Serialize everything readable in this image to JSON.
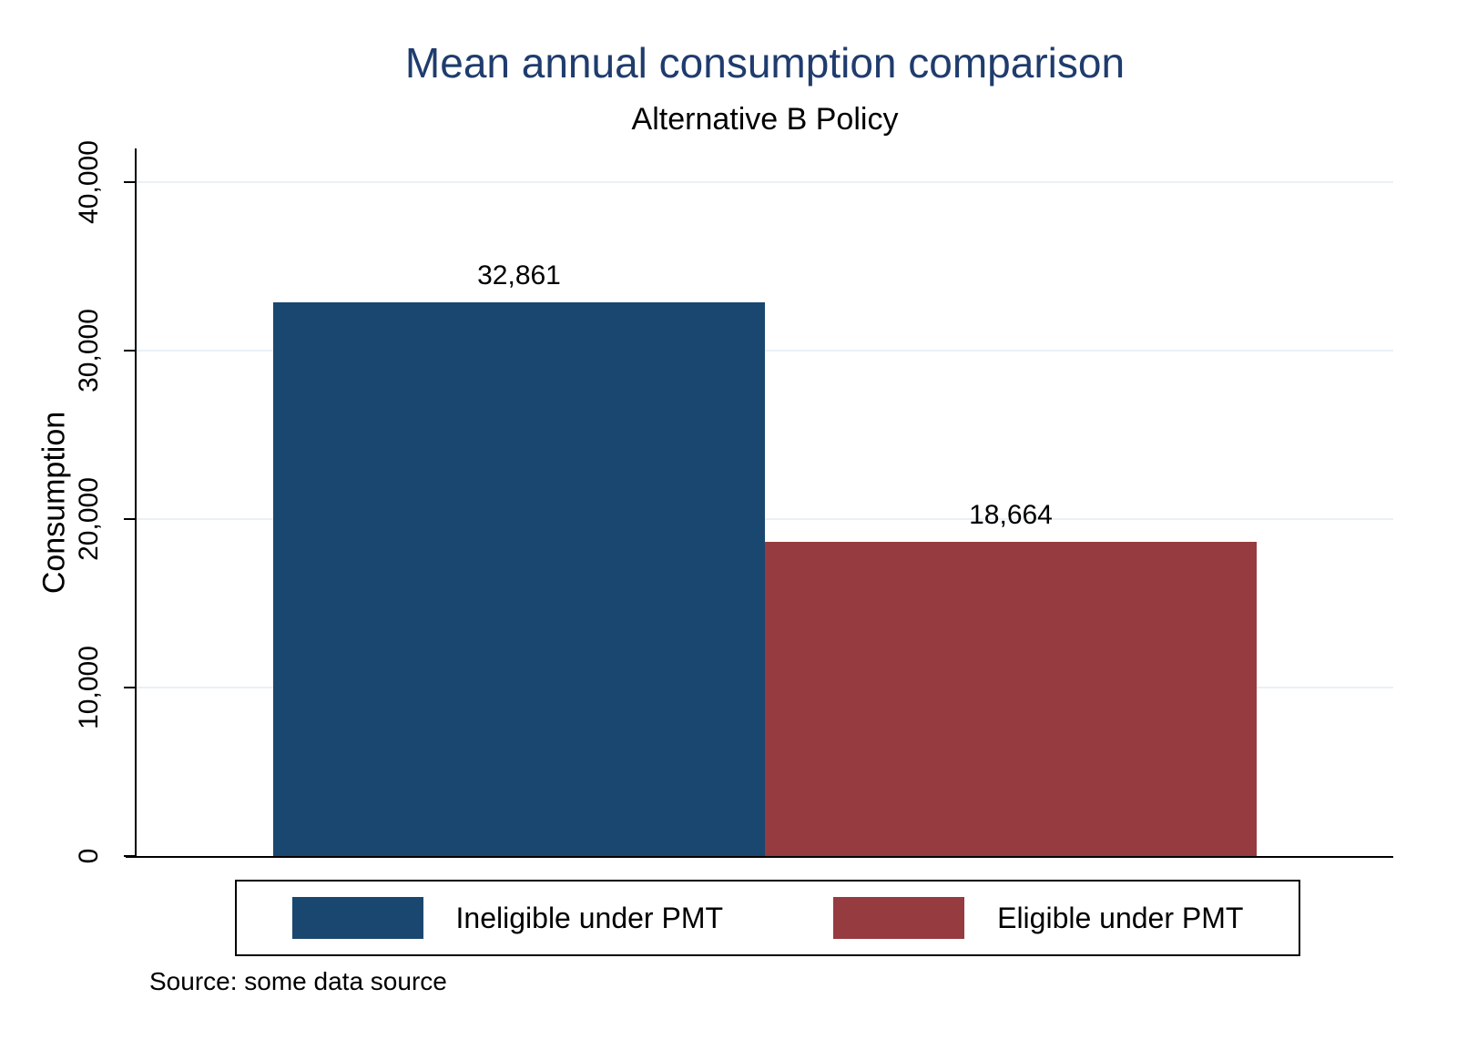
{
  "chart_data": {
    "type": "bar",
    "title": "Mean annual consumption comparison",
    "subtitle": "Alternative B Policy",
    "ylabel": "Consumption",
    "xlabel": "",
    "categories": [
      "Ineligible under PMT",
      "Eligible under PMT"
    ],
    "values": [
      32861,
      18664
    ],
    "value_labels": [
      "32,861",
      "18,664"
    ],
    "bar_colors": [
      "#1a476f",
      "#963b40"
    ],
    "yticks": [
      0,
      10000,
      20000,
      30000,
      40000
    ],
    "ytick_labels": [
      "0",
      "10,000",
      "20,000",
      "30,000",
      "40,000"
    ],
    "ylim": [
      0,
      40000
    ],
    "grid": true,
    "gridline_color": "#e9f1f7",
    "title_color": "#1f3c6d",
    "legend_position": "bottom",
    "legend_items": [
      {
        "label": "Ineligible under PMT",
        "color": "#1a476f"
      },
      {
        "label": "Eligible under PMT",
        "color": "#963b40"
      }
    ]
  },
  "note": {
    "text": "Source: some data source"
  }
}
